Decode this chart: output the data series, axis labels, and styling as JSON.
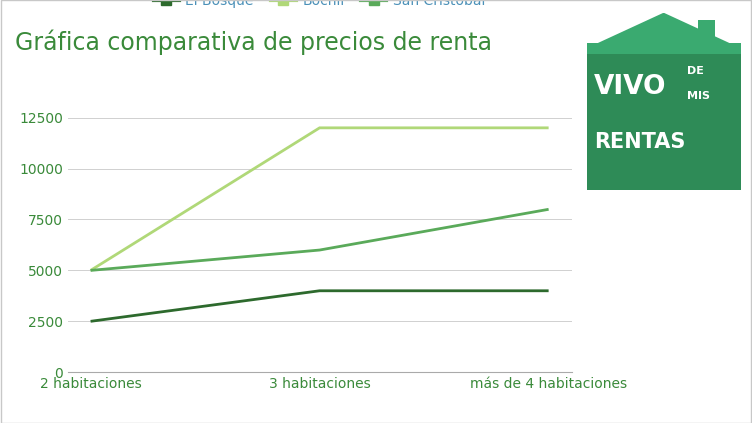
{
  "title": "Gráfica comparativa de precios de renta",
  "title_color": "#3a8a3a",
  "title_fontsize": 17,
  "background_color": "#ffffff",
  "categories": [
    "2 habitaciones",
    "3 habitaciones",
    "más de 4 habitaciones"
  ],
  "series": [
    {
      "name": "El Bosque",
      "values": [
        2500,
        4000,
        4000
      ],
      "color": "#2d6a2d",
      "linewidth": 2.0
    },
    {
      "name": "Bochil",
      "values": [
        5000,
        12000,
        12000
      ],
      "color": "#b0d878",
      "linewidth": 2.0
    },
    {
      "name": "San Cristóbal",
      "values": [
        5000,
        6000,
        8000
      ],
      "color": "#5aaa5a",
      "linewidth": 2.0
    }
  ],
  "ylim": [
    0,
    13500
  ],
  "yticks": [
    0,
    2500,
    5000,
    7500,
    10000,
    12500
  ],
  "tick_label_color": "#3a8a3a",
  "grid_color": "#d0d0d0",
  "legend_fontsize": 10,
  "legend_text_color": "#4a90b8",
  "logo_bg_color": "#2e8b57",
  "logo_roof_color": "#3aaa70",
  "logo_text_color": "#ffffff",
  "border_color": "#c8c8c8",
  "bottom_spine_color": "#aaaaaa"
}
